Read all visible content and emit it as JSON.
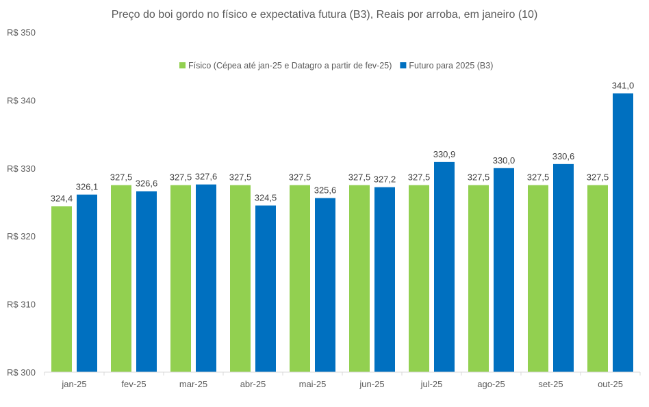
{
  "chart_data": {
    "type": "bar",
    "title": "Preço do boi gordo no físico e expectativa futura (B3), Reais por arroba, em janeiro (10)",
    "xlabel": "",
    "ylabel": "",
    "categories": [
      "jan-25",
      "fev-25",
      "mar-25",
      "abr-25",
      "mai-25",
      "jun-25",
      "jul-25",
      "ago-25",
      "set-25",
      "out-25"
    ],
    "series": [
      {
        "name": "Físico (Cépea até jan-25 e Datagro a partir de fev-25)",
        "color": "#92D050",
        "values": [
          324.4,
          327.5,
          327.5,
          327.5,
          327.5,
          327.5,
          327.5,
          327.5,
          327.5,
          327.5
        ],
        "labels": [
          "324,4",
          "327,5",
          "327,5",
          "327,5",
          "327,5",
          "327,5",
          "327,5",
          "327,5",
          "327,5",
          "327,5"
        ]
      },
      {
        "name": "Futuro para 2025 (B3)",
        "color": "#0070C0",
        "values": [
          326.1,
          326.6,
          327.6,
          324.5,
          325.6,
          327.2,
          330.9,
          330.0,
          330.6,
          341.0
        ],
        "labels": [
          "326,1",
          "326,6",
          "327,6",
          "324,5",
          "325,6",
          "327,2",
          "330,9",
          "330,0",
          "330,6",
          "341,0"
        ]
      }
    ],
    "ylim": [
      300,
      350
    ],
    "yticks": [
      300,
      310,
      320,
      330,
      340,
      350
    ],
    "ytick_labels": [
      "R$ 300",
      "R$ 310",
      "R$ 320",
      "R$ 330",
      "R$ 340",
      "R$ 350"
    ],
    "grid": false,
    "legend_position": "top"
  }
}
